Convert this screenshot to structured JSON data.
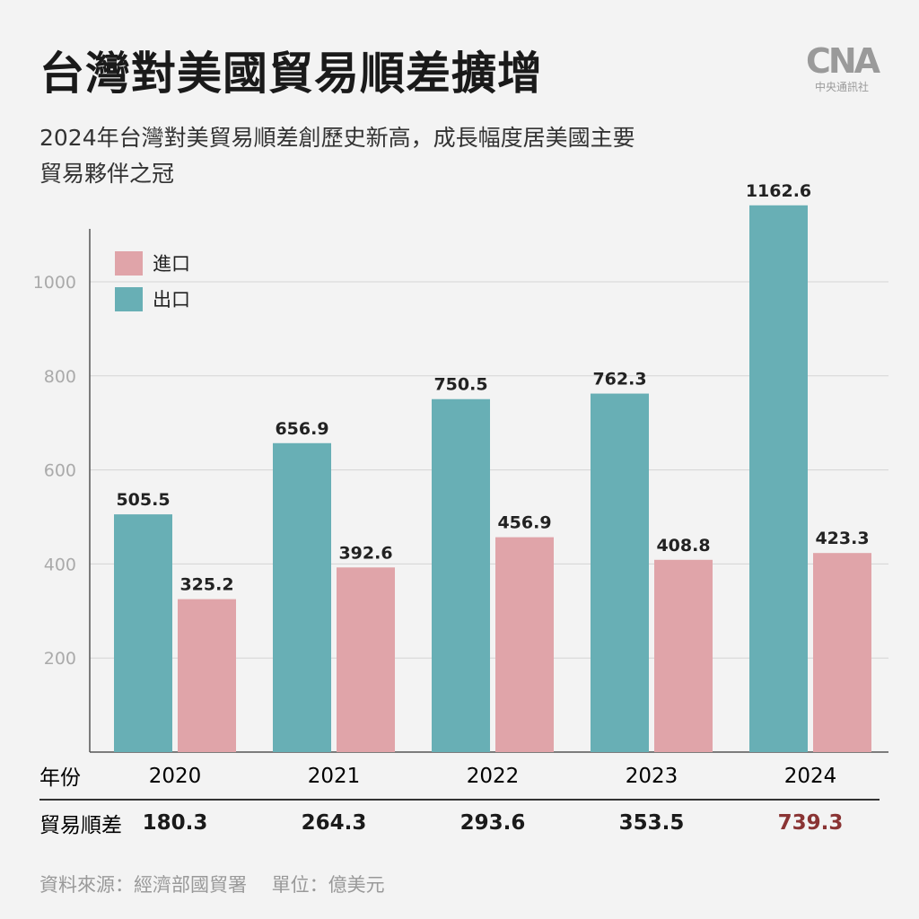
{
  "title": "台灣對美國貿易順差擴增",
  "subtitle": "2024年台灣對美貿易順差創歷史新高，成長幅度居美國主要貿易夥伴之冠",
  "logo": {
    "mark": "CNA",
    "text": "中央通訊社"
  },
  "colors": {
    "export": "#68afb5",
    "import": "#e0a4a9",
    "highlight": "#8a3434",
    "background": "#f3f3f3"
  },
  "chart_data": {
    "type": "bar",
    "categories": [
      "2020",
      "2021",
      "2022",
      "2023",
      "2024"
    ],
    "series": [
      {
        "name": "出口",
        "values": [
          505.5,
          656.9,
          750.5,
          762.3,
          1162.6
        ]
      },
      {
        "name": "進口",
        "values": [
          325.2,
          392.6,
          456.9,
          408.8,
          423.3
        ]
      }
    ],
    "yticks": [
      "200",
      "400",
      "600",
      "800",
      "1000"
    ],
    "ylim": [
      0,
      1100
    ],
    "grid": true,
    "legend": "top-left",
    "legend_order": [
      "進口",
      "出口"
    ]
  },
  "table": {
    "year_label": "年份",
    "surplus_label": "貿易順差",
    "surplus": [
      "180.3",
      "264.3",
      "293.6",
      "353.5",
      "739.3"
    ]
  },
  "source": "資料來源：經濟部國貿署　 單位：億美元"
}
